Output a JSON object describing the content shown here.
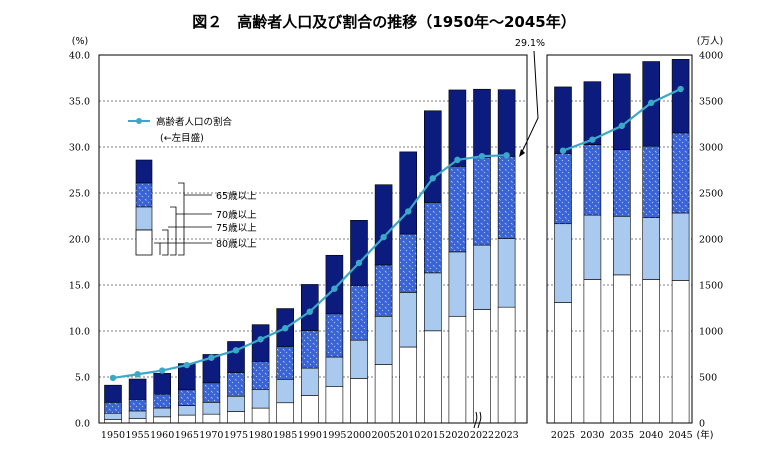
{
  "chart_data": {
    "type": "bar",
    "title": "図２　高齢者人口及び割合の推移（1950年～2045年）",
    "left_axis_unit": "(%)",
    "right_axis_unit": "(万人)",
    "x_unit": "(年)",
    "left_ylim": [
      0,
      40
    ],
    "right_ylim": [
      0,
      4000
    ],
    "left_ticks": [
      "0.0",
      "5.0",
      "10.0",
      "15.0",
      "20.0",
      "25.0",
      "30.0",
      "35.0",
      "40.0"
    ],
    "right_ticks": [
      "0",
      "500",
      "1000",
      "1500",
      "2000",
      "2500",
      "3000",
      "3500",
      "4000"
    ],
    "grid": "horizontal dashed",
    "panels": [
      {
        "categories": [
          "1950",
          "1955",
          "1960",
          "1965",
          "1970",
          "1975",
          "1980",
          "1985",
          "1990",
          "1995",
          "2000",
          "2005",
          "2010",
          "2015",
          "2020",
          "2022",
          "2023"
        ],
        "series": [
          {
            "name": "80歳以上",
            "values": [
              37,
              47,
              67,
              86,
              96,
              125,
              162,
              220,
              300,
              395,
              485,
              636,
              826,
              1002,
              1160,
              1234,
              1259
            ]
          },
          {
            "name": "75歳以上",
            "values": [
              69,
              84,
              96,
              103,
              129,
              166,
              204,
              255,
              297,
              322,
              415,
              524,
              594,
              630,
              700,
              700,
              746
            ]
          },
          {
            "name": "70歳以上",
            "values": [
              119,
              126,
              150,
              172,
              212,
              256,
              304,
              357,
              407,
              470,
              596,
              558,
              635,
              765,
              930,
              953,
              893
            ]
          },
          {
            "name": "65歳以上",
            "values": [
              186,
              221,
              227,
              285,
              308,
              339,
              399,
              412,
              502,
              636,
              707,
              872,
              892,
              997,
              830,
              741,
              725
            ]
          }
        ],
        "ratio_series": {
          "name": "高齢者人口の割合",
          "values": [
            4.9,
            5.3,
            5.7,
            6.3,
            7.1,
            7.9,
            9.1,
            10.3,
            12.1,
            14.6,
            17.4,
            20.2,
            23.0,
            26.6,
            28.6,
            29.0,
            29.1
          ]
        }
      },
      {
        "categories": [
          "2025",
          "2030",
          "2035",
          "2040",
          "2045"
        ],
        "series": [
          {
            "name": "80歳以上",
            "values": [
              1310,
              1560,
              1610,
              1560,
              1550
            ]
          },
          {
            "name": "75歳以上",
            "values": [
              856,
              700,
              637,
              672,
              733
            ]
          },
          {
            "name": "70歳以上",
            "values": [
              764,
              765,
              725,
              777,
              870
            ]
          },
          {
            "name": "65歳以上",
            "values": [
              723,
              685,
              823,
              920,
              800
            ]
          }
        ],
        "ratio_series": {
          "name": "高齢者人口の割合",
          "values": [
            29.6,
            30.8,
            32.3,
            34.8,
            36.3
          ]
        }
      }
    ],
    "annotation": "29.1%",
    "legend": {
      "line_label": "高齢者人口の割合",
      "line_sublabel": "(←左目盛)",
      "bar_labels": [
        "65歳以上",
        "70歳以上",
        "75歳以上",
        "80歳以上"
      ]
    },
    "colors": {
      "band_65": "#0c1c7e",
      "band_70": "#3a63d6",
      "band_75": "#a9c9ee",
      "band_80": "#ffffff",
      "line": "#3aa8c8",
      "grid": "#000000"
    }
  }
}
